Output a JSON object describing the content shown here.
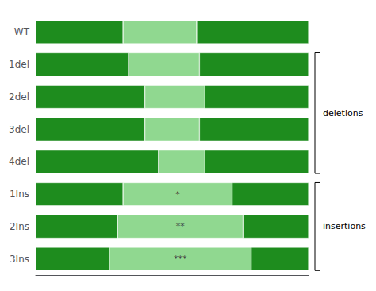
{
  "chart_data": {
    "type": "bar",
    "orientation": "horizontal",
    "stacked": true,
    "categories": [
      "WT",
      "1del",
      "2del",
      "3del",
      "4del",
      "1Ins",
      "2Ins",
      "3Ins"
    ],
    "series": [
      {
        "color": "#1e8c1e",
        "values": [
          0.32,
          0.34,
          0.4,
          0.4,
          0.45,
          0.32,
          0.3,
          0.27
        ]
      },
      {
        "color": "#90d890",
        "values": [
          0.27,
          0.26,
          0.22,
          0.2,
          0.17,
          0.4,
          0.46,
          0.52
        ]
      },
      {
        "color": "#1e8c1e",
        "values": [
          0.41,
          0.4,
          0.38,
          0.4,
          0.38,
          0.28,
          0.24,
          0.21
        ]
      }
    ],
    "xlim": [
      0,
      1
    ],
    "xticks": [],
    "grid": false,
    "tick_labels": "y",
    "annotations": [
      {
        "text": "*",
        "category": "1Ins",
        "series": 1,
        "color": "#444444"
      },
      {
        "text": "**",
        "category": "2Ins",
        "series": 1,
        "color": "#444444"
      },
      {
        "text": "***",
        "category": "3Ins",
        "series": 1,
        "color": "#444444"
      },
      {
        "text": "deletions",
        "from": "1del",
        "to": "4del"
      },
      {
        "text": "insertions",
        "from": "1Ins",
        "to": "3Ins"
      }
    ]
  }
}
